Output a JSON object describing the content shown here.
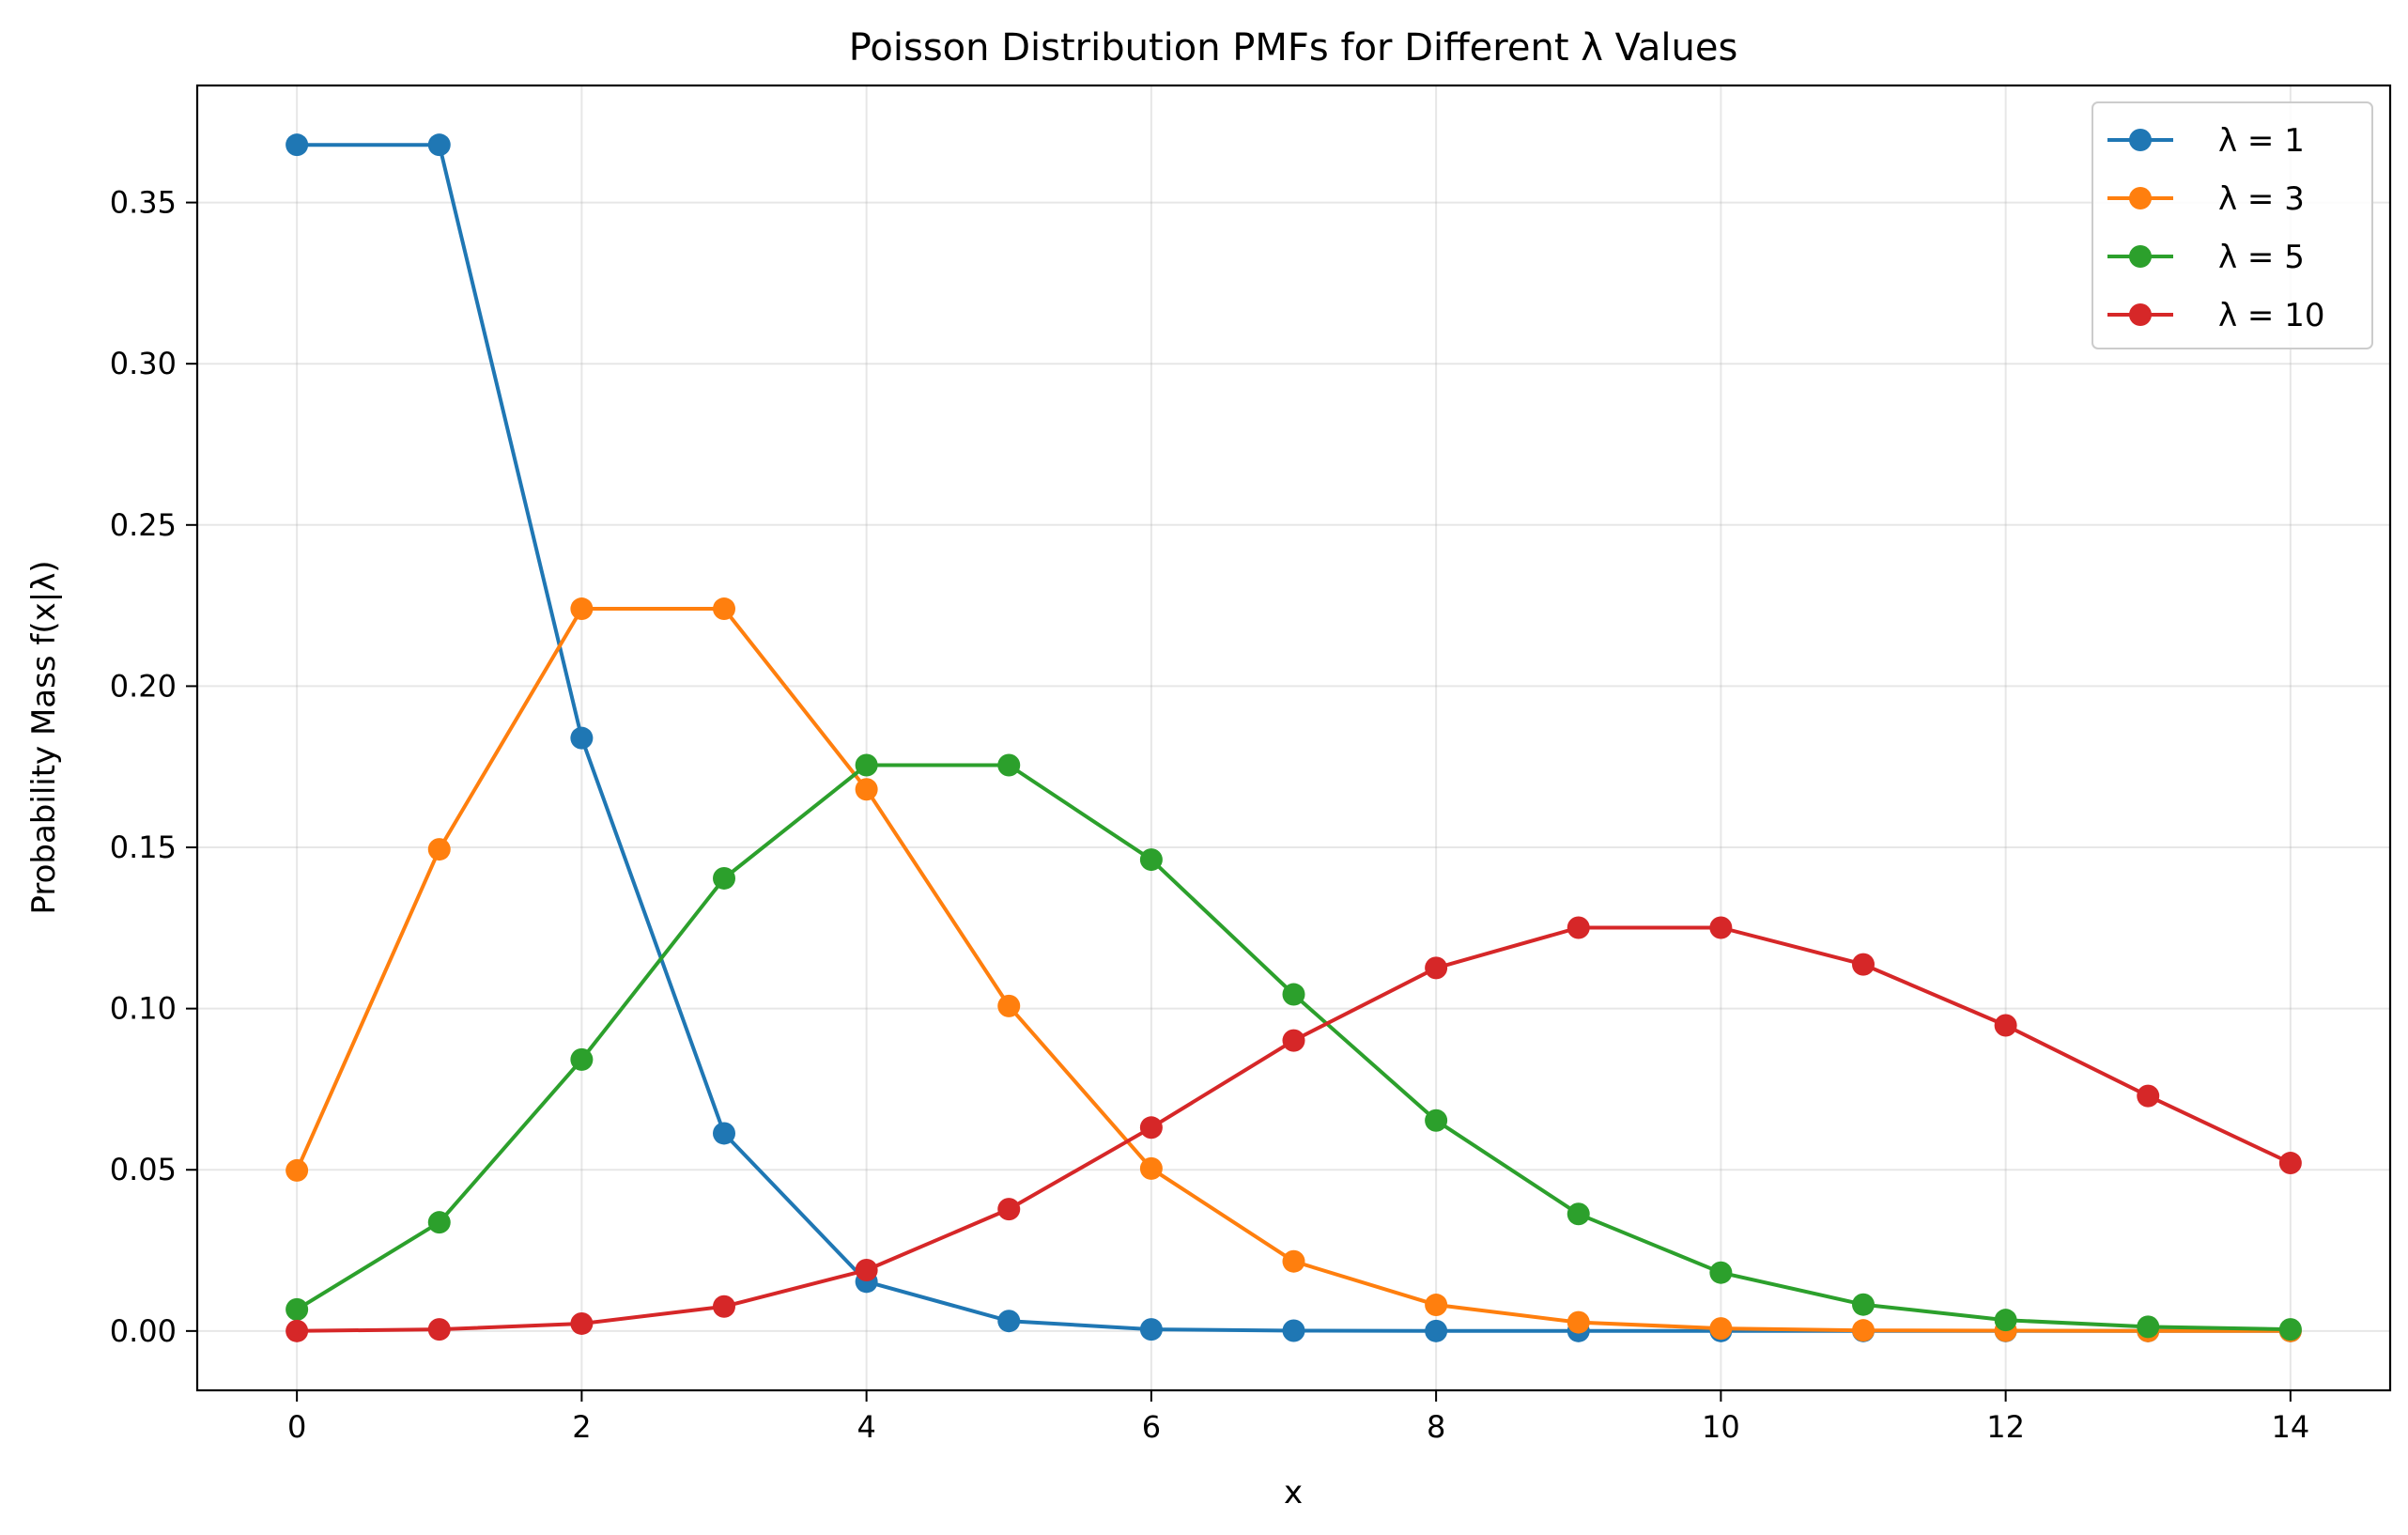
{
  "chart_data": {
    "type": "line",
    "title": "Poisson Distribution PMFs for Different λ Values",
    "xlabel": "x",
    "ylabel": "Probability Mass f(x|λ)",
    "x": [
      0,
      1,
      2,
      3,
      4,
      5,
      6,
      7,
      8,
      9,
      10,
      11,
      12,
      13,
      14
    ],
    "xlim": [
      -0.7,
      14.7
    ],
    "ylim": [
      -0.0184,
      0.3863
    ],
    "xticks": [
      0,
      2,
      4,
      6,
      8,
      10,
      12,
      14
    ],
    "xtick_labels": [
      "0",
      "2",
      "4",
      "6",
      "8",
      "10",
      "12",
      "14"
    ],
    "yticks": [
      0.0,
      0.05,
      0.1,
      0.15,
      0.2,
      0.25,
      0.3,
      0.35
    ],
    "ytick_labels": [
      "0.00",
      "0.05",
      "0.10",
      "0.15",
      "0.20",
      "0.25",
      "0.30",
      "0.35"
    ],
    "grid": true,
    "legend_position": "top-right",
    "series": [
      {
        "name": "λ = 1",
        "color": "#1f77b4",
        "values": [
          0.3679,
          0.3679,
          0.1839,
          0.0613,
          0.0153,
          0.0031,
          0.0005,
          0.0001,
          0.0,
          0.0,
          0.0,
          0.0,
          0.0,
          0.0,
          0.0
        ]
      },
      {
        "name": "λ = 3",
        "color": "#ff7f0e",
        "values": [
          0.0498,
          0.1494,
          0.224,
          0.224,
          0.168,
          0.1008,
          0.0504,
          0.0216,
          0.0081,
          0.0027,
          0.0008,
          0.0002,
          0.0001,
          0.0,
          0.0
        ]
      },
      {
        "name": "λ = 5",
        "color": "#2ca02c",
        "values": [
          0.0067,
          0.0337,
          0.0842,
          0.1404,
          0.1755,
          0.1755,
          0.1462,
          0.1044,
          0.0653,
          0.0363,
          0.0181,
          0.0082,
          0.0034,
          0.0013,
          0.0005
        ]
      },
      {
        "name": "λ = 10",
        "color": "#d62728",
        "values": [
          0.0,
          0.0005,
          0.0023,
          0.0076,
          0.0189,
          0.0378,
          0.0631,
          0.0901,
          0.1126,
          0.1251,
          0.1251,
          0.1137,
          0.0948,
          0.0729,
          0.0521
        ]
      }
    ]
  }
}
